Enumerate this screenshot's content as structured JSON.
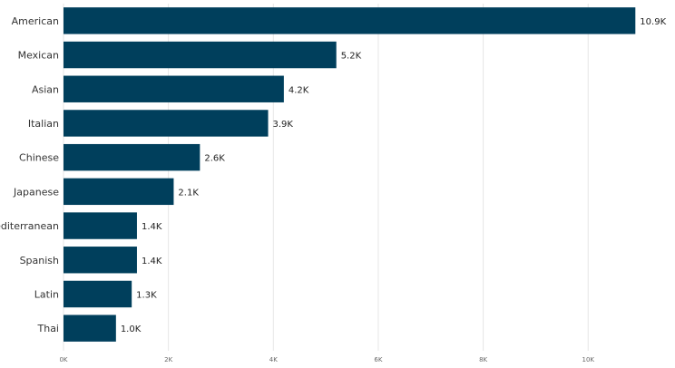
{
  "chart_data": {
    "type": "bar",
    "orientation": "horizontal",
    "categories": [
      "American",
      "Mexican",
      "Asian",
      "Italian",
      "Chinese",
      "Japanese",
      "Mediterranean",
      "Spanish",
      "Latin",
      "Thai"
    ],
    "values": [
      10900,
      5200,
      4200,
      3900,
      2600,
      2100,
      1400,
      1400,
      1300,
      1000
    ],
    "data_labels": [
      "10.9K",
      "5.2K",
      "4.2K",
      "3.9K",
      "2.6K",
      "2.1K",
      "1.4K",
      "1.4K",
      "1.3K",
      "1.0K"
    ],
    "x_ticks": [
      0,
      2000,
      4000,
      6000,
      8000,
      10000
    ],
    "x_tick_labels": [
      "0K",
      "2K",
      "4K",
      "6K",
      "8K",
      "10K"
    ],
    "xlim": [
      0,
      11500
    ],
    "grid": true,
    "bar_color": "#003f5c"
  }
}
